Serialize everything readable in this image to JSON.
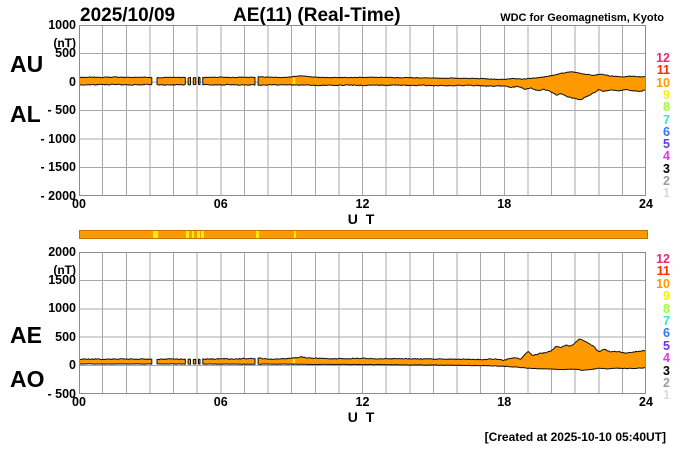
{
  "header": {
    "date": "2025/10/09",
    "title": "AE(11) (Real-Time)",
    "source": "WDC for Geomagnetism, Kyoto"
  },
  "footer": {
    "created_note": "[Created at 2025-10-10 05:40UT]"
  },
  "legend": {
    "entries": [
      {
        "label": "12",
        "color": "#E6297B"
      },
      {
        "label": "11",
        "color": "#FF2A00"
      },
      {
        "label": "10",
        "color": "#FF9900"
      },
      {
        "label": "9",
        "color": "#FFEE00"
      },
      {
        "label": "8",
        "color": "#9BFF2E"
      },
      {
        "label": "7",
        "color": "#33E6CC"
      },
      {
        "label": "6",
        "color": "#2E77FF"
      },
      {
        "label": "5",
        "color": "#6633FF"
      },
      {
        "label": "4",
        "color": "#F02EF0"
      },
      {
        "label": "3",
        "color": "#000000"
      },
      {
        "label": "2",
        "color": "#9C9C9C"
      },
      {
        "label": "1",
        "color": "#D9D9D9"
      }
    ]
  },
  "chart_data": [
    {
      "type": "area",
      "name": "AU-AL panel",
      "x_label": "U T",
      "unit_label": "(nT)",
      "xlim": [
        0,
        24
      ],
      "ylim": [
        -2000,
        1000
      ],
      "x_ticks": [
        {
          "value": 0,
          "label": "00"
        },
        {
          "value": 6,
          "label": "06"
        },
        {
          "value": 12,
          "label": "12"
        },
        {
          "value": 18,
          "label": "18"
        },
        {
          "value": 24,
          "label": "24"
        }
      ],
      "y_ticks": [
        {
          "value": 1000,
          "label": "1000"
        },
        {
          "value": 500,
          "label": "500"
        },
        {
          "value": 0,
          "label": "0"
        },
        {
          "value": -500,
          "label": "- 500"
        },
        {
          "value": -1000,
          "label": "- 1000"
        },
        {
          "value": -1500,
          "label": "- 1500"
        },
        {
          "value": -2000,
          "label": "- 2000"
        }
      ],
      "gaps": [
        [
          3.08,
          3.3
        ],
        [
          4.5,
          4.62
        ],
        [
          4.72,
          4.84
        ],
        [
          4.94,
          5.06
        ],
        [
          5.12,
          5.24
        ],
        [
          7.45,
          7.58
        ]
      ],
      "highlight_slices": [
        {
          "x": [
            9.05,
            9.15
          ],
          "color": "#FFEE00"
        }
      ],
      "fill_color": "#FF9900",
      "line_color": "#111111",
      "grid_color": "#A8A8A8",
      "border_color": "#8C8C8C",
      "series": [
        {
          "name": "AU",
          "noise": 6,
          "points": [
            [
              0,
              80
            ],
            [
              0.5,
              85
            ],
            [
              1,
              80
            ],
            [
              1.5,
              86
            ],
            [
              2,
              80
            ],
            [
              2.5,
              84
            ],
            [
              3,
              80
            ],
            [
              3.4,
              76
            ],
            [
              4,
              80
            ],
            [
              4.7,
              76
            ],
            [
              5.3,
              80
            ],
            [
              6,
              86
            ],
            [
              6.5,
              80
            ],
            [
              7,
              85
            ],
            [
              7.4,
              80
            ],
            [
              7.6,
              92
            ],
            [
              8,
              85
            ],
            [
              8.5,
              80
            ],
            [
              9,
              90
            ],
            [
              9.4,
              112
            ],
            [
              9.7,
              90
            ],
            [
              10,
              85
            ],
            [
              10.5,
              80
            ],
            [
              11,
              82
            ],
            [
              11.5,
              78
            ],
            [
              12,
              85
            ],
            [
              12.5,
              80
            ],
            [
              13,
              80
            ],
            [
              13.5,
              76
            ],
            [
              14,
              75
            ],
            [
              14.5,
              72
            ],
            [
              15,
              70
            ],
            [
              15.5,
              68
            ],
            [
              16,
              65
            ],
            [
              16.5,
              62
            ],
            [
              17,
              60
            ],
            [
              17.5,
              50
            ],
            [
              18,
              45
            ],
            [
              18.4,
              62
            ],
            [
              18.8,
              50
            ],
            [
              19.2,
              66
            ],
            [
              19.6,
              82
            ],
            [
              20,
              112
            ],
            [
              20.3,
              142
            ],
            [
              20.6,
              165
            ],
            [
              20.9,
              178
            ],
            [
              21.2,
              152
            ],
            [
              21.5,
              132
            ],
            [
              21.8,
              115
            ],
            [
              22.1,
              142
            ],
            [
              22.4,
              112
            ],
            [
              22.7,
              96
            ],
            [
              23,
              90
            ],
            [
              23.3,
              102
            ],
            [
              23.6,
              96
            ],
            [
              24,
              92
            ]
          ]
        },
        {
          "name": "AL",
          "noise": 8,
          "points": [
            [
              0,
              -50
            ],
            [
              0.5,
              -46
            ],
            [
              1,
              -48
            ],
            [
              1.5,
              -44
            ],
            [
              2,
              -50
            ],
            [
              2.5,
              -46
            ],
            [
              3,
              -45
            ],
            [
              3.5,
              -48
            ],
            [
              4,
              -50
            ],
            [
              4.6,
              -46
            ],
            [
              5.2,
              -48
            ],
            [
              6,
              -50
            ],
            [
              6.5,
              -46
            ],
            [
              7,
              -55
            ],
            [
              7.5,
              -50
            ],
            [
              8,
              -52
            ],
            [
              8.5,
              -48
            ],
            [
              9,
              -55
            ],
            [
              9.5,
              -50
            ],
            [
              10,
              -60
            ],
            [
              10.5,
              -55
            ],
            [
              11,
              -56
            ],
            [
              11.5,
              -52
            ],
            [
              12,
              -60
            ],
            [
              12.5,
              -55
            ],
            [
              13,
              -56
            ],
            [
              13.5,
              -52
            ],
            [
              14,
              -60
            ],
            [
              14.5,
              -56
            ],
            [
              15,
              -65
            ],
            [
              15.5,
              -60
            ],
            [
              16,
              -62
            ],
            [
              16.5,
              -58
            ],
            [
              17,
              -65
            ],
            [
              17.5,
              -76
            ],
            [
              18,
              -66
            ],
            [
              18.3,
              -96
            ],
            [
              18.6,
              -76
            ],
            [
              18.9,
              -132
            ],
            [
              19.1,
              -100
            ],
            [
              19.4,
              -152
            ],
            [
              19.7,
              -130
            ],
            [
              20,
              -172
            ],
            [
              20.2,
              -232
            ],
            [
              20.4,
              -200
            ],
            [
              20.7,
              -262
            ],
            [
              21,
              -292
            ],
            [
              21.2,
              -316
            ],
            [
              21.4,
              -272
            ],
            [
              21.6,
              -232
            ],
            [
              21.8,
              -192
            ],
            [
              22,
              -132
            ],
            [
              22.2,
              -162
            ],
            [
              22.5,
              -142
            ],
            [
              22.8,
              -156
            ],
            [
              23.1,
              -132
            ],
            [
              23.4,
              -152
            ],
            [
              23.7,
              -162
            ],
            [
              24,
              -142
            ]
          ]
        }
      ]
    },
    {
      "type": "area",
      "name": "AE-AO panel",
      "x_label": "U T",
      "unit_label": "(nT)",
      "xlim": [
        0,
        24
      ],
      "ylim": [
        -500,
        2000
      ],
      "x_ticks": [
        {
          "value": 0,
          "label": "00"
        },
        {
          "value": 6,
          "label": "06"
        },
        {
          "value": 12,
          "label": "12"
        },
        {
          "value": 18,
          "label": "18"
        },
        {
          "value": 24,
          "label": "24"
        }
      ],
      "y_ticks": [
        {
          "value": 2000,
          "label": "2000"
        },
        {
          "value": 1500,
          "label": "1500"
        },
        {
          "value": 1000,
          "label": "1000"
        },
        {
          "value": 500,
          "label": "500"
        },
        {
          "value": 0,
          "label": "0"
        },
        {
          "value": -500,
          "label": "- 500"
        }
      ],
      "gaps": [
        [
          3.08,
          3.3
        ],
        [
          4.5,
          4.62
        ],
        [
          4.72,
          4.84
        ],
        [
          4.94,
          5.06
        ],
        [
          5.12,
          5.24
        ],
        [
          7.45,
          7.58
        ]
      ],
      "highlight_slices": [
        {
          "x": [
            9.05,
            9.15
          ],
          "color": "#FFEE00"
        }
      ],
      "fill_color": "#FF9900",
      "line_color": "#111111",
      "grid_color": "#A8A8A8",
      "border_color": "#8C8C8C",
      "series": [
        {
          "name": "AE",
          "noise": 8,
          "points": [
            [
              0,
              112
            ],
            [
              0.5,
              116
            ],
            [
              1,
              110
            ],
            [
              1.5,
              116
            ],
            [
              2,
              112
            ],
            [
              2.5,
              118
            ],
            [
              3,
              112
            ],
            [
              3.5,
              114
            ],
            [
              4,
              116
            ],
            [
              4.6,
              112
            ],
            [
              5.2,
              112
            ],
            [
              6,
              120
            ],
            [
              6.5,
              116
            ],
            [
              7,
              122
            ],
            [
              7.6,
              132
            ],
            [
              8,
              116
            ],
            [
              8.5,
              120
            ],
            [
              9,
              130
            ],
            [
              9.4,
              152
            ],
            [
              9.7,
              132
            ],
            [
              10,
              130
            ],
            [
              10.5,
              122
            ],
            [
              11,
              120
            ],
            [
              11.5,
              124
            ],
            [
              12,
              130
            ],
            [
              12.5,
              122
            ],
            [
              13,
              120
            ],
            [
              13.5,
              122
            ],
            [
              14,
              120
            ],
            [
              14.5,
              118
            ],
            [
              15,
              116
            ],
            [
              15.5,
              114
            ],
            [
              16,
              110
            ],
            [
              16.5,
              112
            ],
            [
              17,
              110
            ],
            [
              17.6,
              116
            ],
            [
              18,
              96
            ],
            [
              18.4,
              142
            ],
            [
              18.7,
              116
            ],
            [
              19,
              256
            ],
            [
              19.2,
              172
            ],
            [
              19.5,
              212
            ],
            [
              19.8,
              232
            ],
            [
              20,
              262
            ],
            [
              20.2,
              342
            ],
            [
              20.4,
              312
            ],
            [
              20.6,
              362
            ],
            [
              20.8,
              342
            ],
            [
              21,
              402
            ],
            [
              21.2,
              472
            ],
            [
              21.4,
              432
            ],
            [
              21.6,
              382
            ],
            [
              21.8,
              332
            ],
            [
              22,
              242
            ],
            [
              22.2,
              292
            ],
            [
              22.5,
              236
            ],
            [
              22.8,
              252
            ],
            [
              23.1,
              216
            ],
            [
              23.4,
              236
            ],
            [
              23.7,
              256
            ],
            [
              24,
              266
            ]
          ]
        },
        {
          "name": "AO",
          "noise": 4,
          "points": [
            [
              0,
              30
            ],
            [
              1,
              28
            ],
            [
              2,
              30
            ],
            [
              3,
              28
            ],
            [
              4,
              30
            ],
            [
              5,
              26
            ],
            [
              6,
              28
            ],
            [
              7,
              25
            ],
            [
              8,
              26
            ],
            [
              9,
              25
            ],
            [
              10,
              20
            ],
            [
              11,
              20
            ],
            [
              12,
              18
            ],
            [
              13,
              15
            ],
            [
              14,
              12
            ],
            [
              15,
              10
            ],
            [
              16,
              6
            ],
            [
              17,
              0
            ],
            [
              17.5,
              -5
            ],
            [
              18,
              -12
            ],
            [
              18.5,
              -26
            ],
            [
              19,
              -45
            ],
            [
              19.5,
              -56
            ],
            [
              20,
              -62
            ],
            [
              20.5,
              -72
            ],
            [
              21,
              -62
            ],
            [
              21.3,
              -82
            ],
            [
              21.6,
              -72
            ],
            [
              22,
              -46
            ],
            [
              22.4,
              -56
            ],
            [
              22.8,
              -46
            ],
            [
              23.2,
              -52
            ],
            [
              23.6,
              -48
            ],
            [
              24,
              -36
            ]
          ]
        }
      ]
    }
  ],
  "station_bar": {
    "fill_color": "#FF9900",
    "border_color": "#C27000",
    "slices": [
      {
        "x": [
          3.08,
          3.3
        ],
        "color": "#FFEE00"
      },
      {
        "x": [
          4.5,
          4.62
        ],
        "color": "#FFEE00"
      },
      {
        "x": [
          4.72,
          4.84
        ],
        "color": "#FFEE00"
      },
      {
        "x": [
          4.94,
          5.06
        ],
        "color": "#FFEE00"
      },
      {
        "x": [
          5.12,
          5.24
        ],
        "color": "#FFEE00"
      },
      {
        "x": [
          7.45,
          7.58
        ],
        "color": "#FFEE00"
      },
      {
        "x": [
          9.05,
          9.15
        ],
        "color": "#FFEE00"
      }
    ]
  }
}
